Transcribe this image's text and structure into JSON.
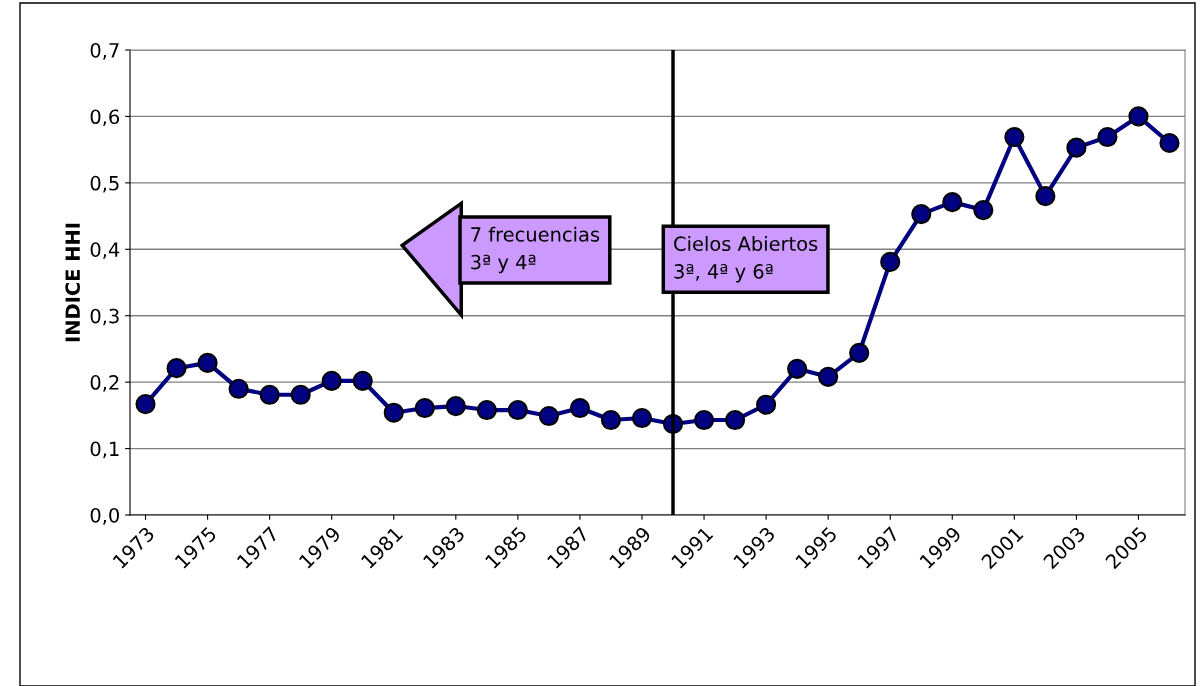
{
  "chart_data": {
    "type": "line",
    "ylabel": "INDICE HHI",
    "x": [
      1973,
      1974,
      1975,
      1976,
      1977,
      1978,
      1979,
      1980,
      1981,
      1982,
      1983,
      1984,
      1985,
      1986,
      1987,
      1988,
      1989,
      1990,
      1991,
      1992,
      1993,
      1994,
      1995,
      1996,
      1997,
      1998,
      1999,
      2000,
      2001,
      2002,
      2003,
      2004,
      2005,
      2006
    ],
    "series": [
      {
        "color": "#000080",
        "values": [
          0.167,
          0.221,
          0.229,
          0.19,
          0.181,
          0.181,
          0.202,
          0.202,
          0.154,
          0.161,
          0.164,
          0.158,
          0.158,
          0.149,
          0.161,
          0.143,
          0.146,
          0.137,
          0.143,
          0.143,
          0.166,
          0.22,
          0.208,
          0.244,
          0.381,
          0.453,
          0.471,
          0.459,
          0.569,
          0.48,
          0.553,
          0.569,
          0.6,
          0.56
        ]
      }
    ],
    "xlim": [
      1972.5,
      2006.5
    ],
    "xticks": [
      1973,
      1975,
      1977,
      1979,
      1981,
      1983,
      1985,
      1987,
      1989,
      1991,
      1993,
      1995,
      1997,
      1999,
      2001,
      2003,
      2005
    ],
    "ylim": [
      0,
      0.7
    ],
    "yticks": [
      {
        "value": 0,
        "label": "0,0"
      },
      {
        "value": 0.1,
        "label": "0,1"
      },
      {
        "value": 0.2,
        "label": "0,2"
      },
      {
        "value": 0.3,
        "label": "0,3"
      },
      {
        "value": 0.4,
        "label": "0,4"
      },
      {
        "value": 0.5,
        "label": "0,5"
      },
      {
        "value": 0.6,
        "label": "0,6"
      },
      {
        "value": 0.7,
        "label": "0,7"
      }
    ],
    "ref_lines": [
      {
        "axis": "x",
        "value": 1990,
        "label": "Cielos Abiertos\n3ª, 4ª y 6ª",
        "color": "#000000"
      }
    ],
    "annotations": [
      "7 frecuencias\n3ª y 4ª"
    ],
    "grid": "y",
    "marker": "circle",
    "line_style": "solid",
    "legend": false
  }
}
